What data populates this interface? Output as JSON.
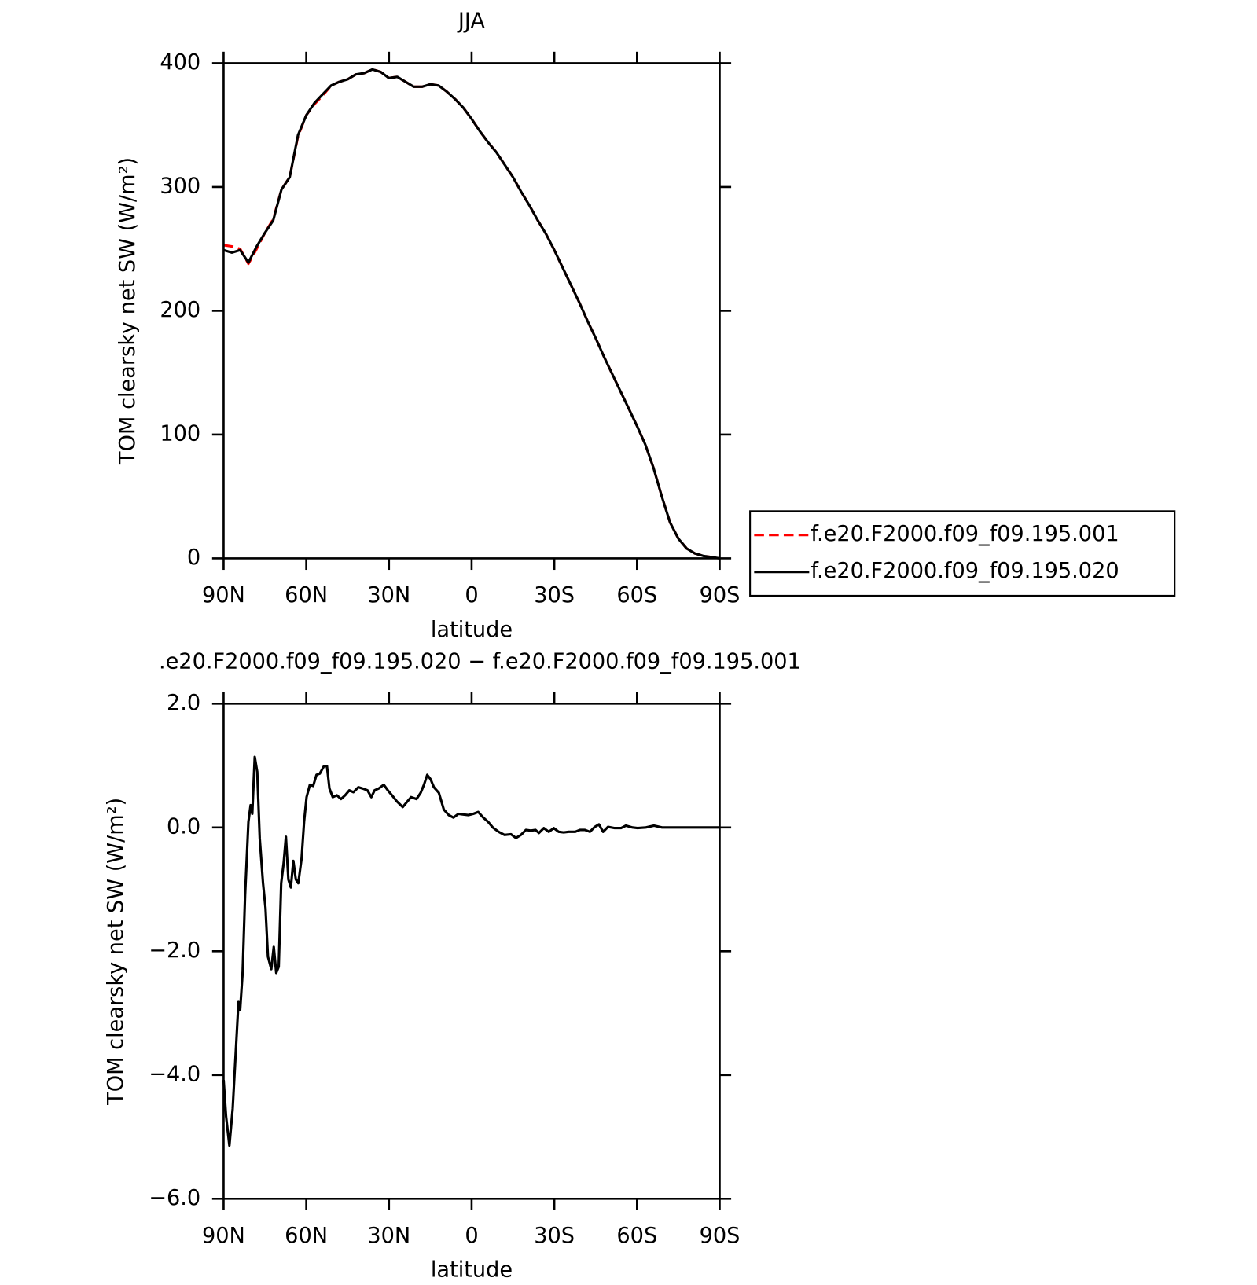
{
  "chart_data": [
    {
      "type": "line",
      "title": "JJA",
      "xlabel": "latitude",
      "ylabel": "TOM clearsky net SW (W/m²)",
      "x": [
        90,
        87,
        84,
        81,
        78,
        75,
        72,
        69,
        66,
        63,
        60,
        57,
        54,
        51,
        48,
        45,
        42,
        39,
        36,
        33,
        30,
        27,
        24,
        21,
        18,
        15,
        12,
        9,
        6,
        3,
        0,
        -3,
        -6,
        -9,
        -12,
        -15,
        -18,
        -21,
        -24,
        -27,
        -30,
        -33,
        -36,
        -39,
        -42,
        -45,
        -48,
        -51,
        -54,
        -57,
        -60,
        -63,
        -66,
        -69,
        -72,
        -75,
        -78,
        -81,
        -84,
        -87,
        -90
      ],
      "series": [
        {
          "name": "f.e20.F2000.f09_f09.195.001",
          "color": "#ff0000",
          "dash": "dashed",
          "values": [
            253,
            252,
            250,
            238,
            250,
            263,
            274,
            298,
            308,
            341,
            358,
            367,
            374,
            382,
            385,
            387,
            391,
            392,
            395,
            393,
            388,
            389,
            385,
            381,
            381,
            383,
            382,
            377,
            371,
            364,
            355,
            345,
            336,
            328,
            318,
            308,
            296,
            285,
            273,
            262,
            249,
            235,
            221,
            207,
            192,
            178,
            163,
            149,
            135,
            121,
            107,
            92,
            73,
            50,
            29,
            16,
            8,
            4,
            2,
            1,
            0
          ]
        },
        {
          "name": "f.e20.F2000.f09_f09.195.020",
          "color": "#000000",
          "values": [
            249,
            247,
            249,
            239,
            252,
            263,
            273,
            298,
            308,
            342,
            358,
            368,
            375,
            382,
            385,
            387,
            391,
            392,
            395,
            393,
            388,
            389,
            385,
            381,
            381,
            383,
            382,
            377,
            371,
            364,
            355,
            345,
            336,
            328,
            318,
            308,
            296,
            285,
            273,
            262,
            249,
            235,
            221,
            207,
            192,
            178,
            163,
            149,
            135,
            121,
            107,
            92,
            73,
            50,
            29,
            16,
            8,
            4,
            2,
            1,
            0
          ]
        }
      ],
      "xlim": [
        90,
        -90
      ],
      "xticks": [
        {
          "value": 90,
          "label": "90N"
        },
        {
          "value": 60,
          "label": "60N"
        },
        {
          "value": 30,
          "label": "30N"
        },
        0,
        {
          "value": -30,
          "label": "30S"
        },
        {
          "value": -60,
          "label": "60S"
        },
        {
          "value": -90,
          "label": "90S"
        }
      ],
      "ylim": [
        0,
        400
      ],
      "yticks": [
        0,
        100,
        200,
        300,
        400
      ],
      "legend": "right"
    },
    {
      "type": "line",
      "title": ".e20.F2000.f09_f09.195.020 − f.e20.F2000.f09_f09.195.001",
      "xlabel": "latitude",
      "ylabel": "TOM clearsky net SW (W/m²)",
      "x": [
        90,
        89.1,
        87.9,
        86.7,
        84.6,
        84.0,
        83.1,
        82.2,
        81.0,
        80.2,
        79.6,
        78.7,
        77.8,
        76.9,
        75.7,
        74.8,
        73.9,
        72.7,
        71.8,
        70.9,
        70.0,
        69.1,
        68.2,
        67.4,
        66.5,
        65.6,
        64.7,
        63.8,
        62.9,
        61.7,
        60.8,
        59.9,
        58.7,
        57.5,
        56.3,
        55.1,
        53.6,
        52.5,
        51.6,
        50.4,
        48.9,
        47.4,
        45.9,
        44.4,
        42.9,
        41.1,
        39.6,
        37.8,
        36.4,
        35.2,
        33.7,
        31.9,
        30.4,
        28.9,
        27.1,
        25.0,
        23.5,
        22.0,
        20.0,
        18.5,
        17.3,
        16.1,
        14.9,
        13.7,
        11.9,
        10.1,
        8.3,
        6.6,
        4.8,
        3.0,
        1.2,
        -0.6,
        -2.4,
        -4.2,
        -6.0,
        -7.7,
        -9.8,
        -11.9,
        -14.3,
        -16.1,
        -17.9,
        -19.7,
        -21.5,
        -23.2,
        -24.4,
        -26.2,
        -28.0,
        -29.8,
        -31.6,
        -33.4,
        -35.2,
        -37.6,
        -39.3,
        -41.1,
        -42.9,
        -44.7,
        -46.2,
        -47.7,
        -49.5,
        -51.9,
        -54.2,
        -56.0,
        -58.4,
        -60.2,
        -63.2,
        -66.2,
        -69.1,
        -73.3,
        -90
      ],
      "series": [
        {
          "color": "#000000",
          "values": [
            -4.08,
            -4.67,
            -5.14,
            -4.54,
            -2.82,
            -2.95,
            -2.35,
            -1.09,
            0.09,
            0.36,
            0.22,
            1.14,
            0.9,
            -0.17,
            -0.9,
            -1.3,
            -2.09,
            -2.29,
            -1.93,
            -2.35,
            -2.25,
            -0.9,
            -0.57,
            -0.15,
            -0.84,
            -0.97,
            -0.54,
            -0.84,
            -0.9,
            -0.5,
            0.09,
            0.49,
            0.69,
            0.67,
            0.85,
            0.87,
            0.99,
            0.99,
            0.63,
            0.49,
            0.52,
            0.46,
            0.52,
            0.6,
            0.57,
            0.65,
            0.63,
            0.6,
            0.49,
            0.6,
            0.63,
            0.69,
            0.6,
            0.52,
            0.42,
            0.33,
            0.41,
            0.49,
            0.46,
            0.56,
            0.69,
            0.85,
            0.78,
            0.65,
            0.56,
            0.29,
            0.2,
            0.16,
            0.22,
            0.21,
            0.2,
            0.22,
            0.25,
            0.16,
            0.09,
            0.0,
            -0.07,
            -0.12,
            -0.11,
            -0.17,
            -0.12,
            -0.04,
            -0.05,
            -0.04,
            -0.09,
            -0.01,
            -0.07,
            -0.01,
            -0.07,
            -0.08,
            -0.07,
            -0.07,
            -0.04,
            -0.04,
            -0.07,
            0.01,
            0.05,
            -0.07,
            0.01,
            -0.01,
            -0.01,
            0.03,
            0.0,
            -0.01,
            0.0,
            0.03,
            0.0,
            0.0,
            0.0
          ]
        }
      ],
      "xlim": [
        90,
        -90
      ],
      "xticks": [
        {
          "value": 90,
          "label": "90N"
        },
        {
          "value": 60,
          "label": "60N"
        },
        {
          "value": 30,
          "label": "30N"
        },
        0,
        {
          "value": -30,
          "label": "30S"
        },
        {
          "value": -60,
          "label": "60S"
        },
        {
          "value": -90,
          "label": "90S"
        }
      ],
      "ylim": [
        -6,
        2
      ],
      "yticks": [
        {
          "value": -6,
          "label": "−6.0"
        },
        {
          "value": -4,
          "label": "−4.0"
        },
        {
          "value": -2,
          "label": "−2.0"
        },
        {
          "value": 0,
          "label": "0.0"
        },
        {
          "value": 2,
          "label": "2.0"
        }
      ]
    }
  ]
}
